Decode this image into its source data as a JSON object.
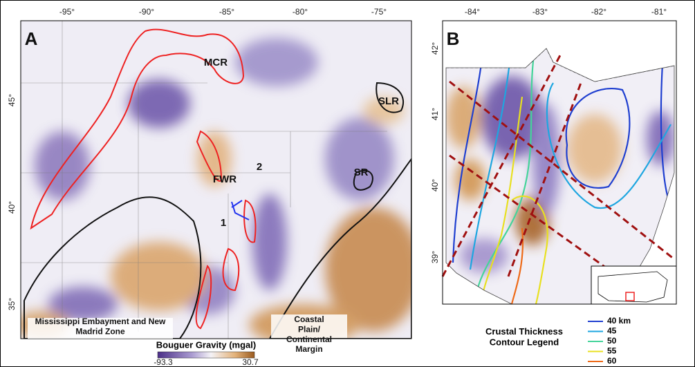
{
  "panel_a": {
    "label": "A",
    "lon_labels": [
      "-95°",
      "-90°",
      "-85°",
      "-80°",
      "-75°"
    ],
    "lat_labels": [
      "45°",
      "40°",
      "35°"
    ],
    "features": [
      "MCR",
      "SLR",
      "SR",
      "FWR",
      "1",
      "2"
    ],
    "regions": [
      "Mississippi Embayment and New Madrid Zone",
      "Coastal Plain/ Continental Margin"
    ],
    "colorbar": {
      "title": "Bouguer Gravity (mgal)",
      "min": "-93.3",
      "max": "30.7"
    }
  },
  "panel_b": {
    "label": "B",
    "lon_labels": [
      "-84°",
      "-83°",
      "-82°",
      "-81°"
    ],
    "lat_labels": [
      "42°",
      "41°",
      "40°",
      "39°"
    ],
    "legend": {
      "title": "Crustal Thickness Contour Legend",
      "entries": [
        {
          "label": "40 km",
          "color": "#1f3fd0"
        },
        {
          "label": "45",
          "color": "#1ea6e0"
        },
        {
          "label": "50",
          "color": "#44d49a"
        },
        {
          "label": "55",
          "color": "#e8e020"
        },
        {
          "label": "60",
          "color": "#ee6a18"
        }
      ]
    }
  }
}
